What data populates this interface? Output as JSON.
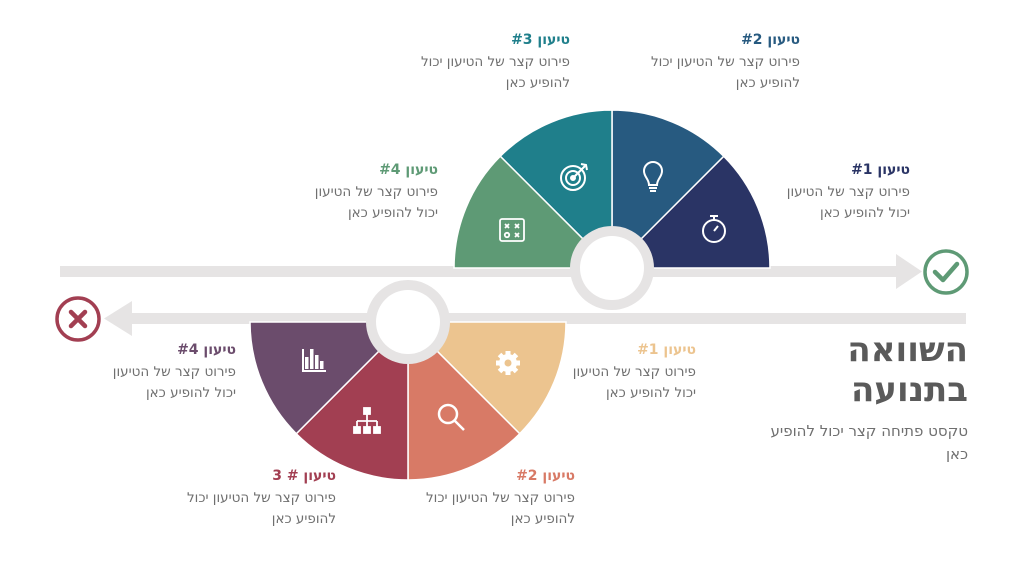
{
  "title": "השוואה בתנועה",
  "subtitle": "טקסט פתיחה קצר יכול להופיע כאן",
  "colors": {
    "track": "#e6e4e4",
    "positive_mark": "#5e9a75",
    "negative_mark": "#a23f52"
  },
  "positive": [
    {
      "title": "טיעון #1",
      "text": "פירוט קצר של הטיעון יכול להופיע כאן",
      "color": "#2a3465",
      "icon": "stopwatch-icon"
    },
    {
      "title": "טיעון #2",
      "text": "פירוט קצר של הטיעון יכול להופיע כאן",
      "color": "#275a80",
      "icon": "lightbulb-icon"
    },
    {
      "title": "טיעון #3",
      "text": "פירוט קצר של הטיעון יכול להופיע כאן",
      "color": "#1f7f8b",
      "icon": "target-icon"
    },
    {
      "title": "טיעון #4",
      "text": "פירוט קצר של הטיעון יכול להופיע כאן",
      "color": "#5e9a75",
      "icon": "strategy-board-icon"
    }
  ],
  "negative": [
    {
      "title": "טיעון #1",
      "text": "פירוט קצר של הטיעון יכול להופיע כאן",
      "color": "#ecc48f",
      "icon": "gear-icon"
    },
    {
      "title": "טיעון #2",
      "text": "פירוט קצר של הטיעון יכול להופיע כאן",
      "color": "#d87a66",
      "icon": "magnifier-icon"
    },
    {
      "title": "טיעון # 3",
      "text": "פירוט קצר של הטיעון יכול להופיע כאן",
      "color": "#a23f52",
      "icon": "org-chart-icon"
    },
    {
      "title": "טיעון #4",
      "text": "פירוט קצר של הטיעון יכול להופיע כאן",
      "color": "#6b4c6c",
      "icon": "bar-chart-icon"
    }
  ]
}
